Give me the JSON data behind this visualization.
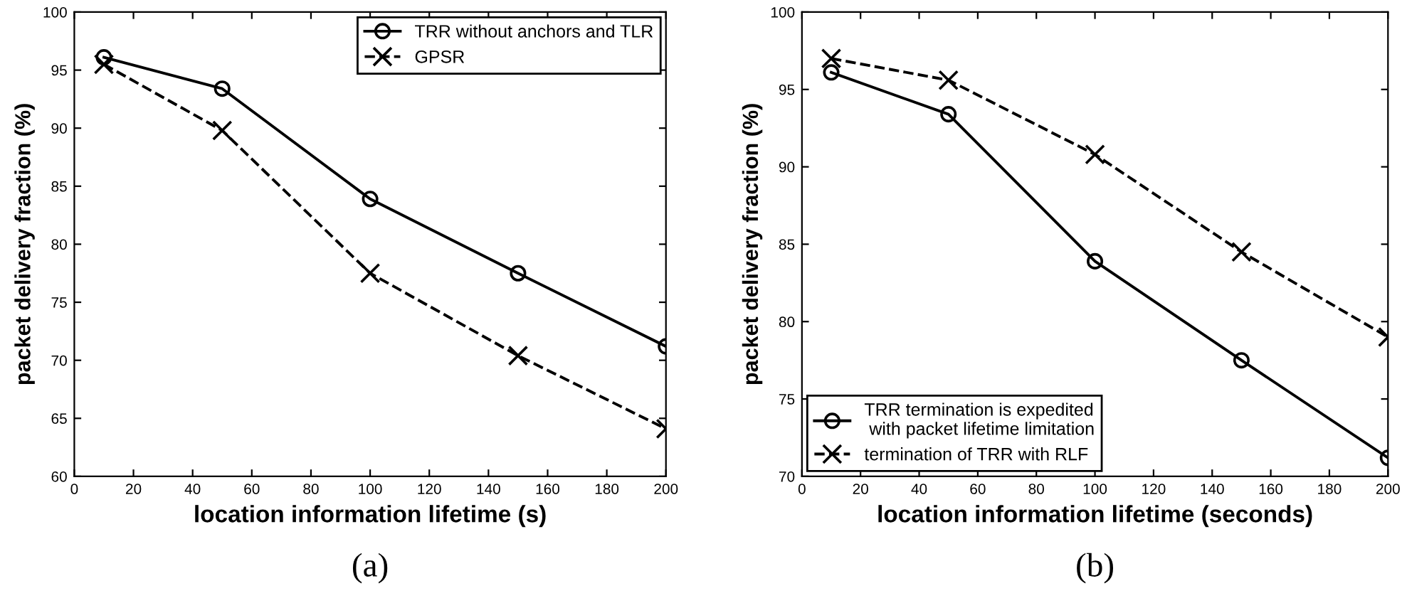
{
  "chart_data": [
    {
      "type": "line",
      "xlabel": "location information lifetime (s)",
      "ylabel": "packet delivery fraction (%)",
      "annotations": [
        "(a)"
      ],
      "x": [
        10,
        50,
        100,
        150,
        200
      ],
      "xlim": [
        0,
        200
      ],
      "ylim": [
        60,
        100
      ],
      "xticks": [
        0,
        20,
        40,
        60,
        80,
        100,
        120,
        140,
        160,
        180,
        200
      ],
      "yticks": [
        60,
        65,
        70,
        75,
        80,
        85,
        90,
        95,
        100
      ],
      "grid": false,
      "legend": "top right",
      "series": [
        {
          "name": "TRR without anchors and TLR",
          "color": "#000000",
          "marker": "circle",
          "line_style": "solid",
          "values": [
            96.1,
            93.4,
            83.9,
            77.5,
            71.2
          ]
        },
        {
          "name": "GPSR",
          "color": "#000000",
          "marker": "cross",
          "line_style": "dashed",
          "values": [
            95.5,
            89.8,
            77.5,
            70.4,
            64.1
          ]
        }
      ]
    },
    {
      "type": "line",
      "xlabel": "location information lifetime (seconds)",
      "ylabel": "packet delivery fraction (%)",
      "annotations": [
        "(b)"
      ],
      "x": [
        10,
        50,
        100,
        150,
        200
      ],
      "xlim": [
        0,
        200
      ],
      "ylim": [
        70,
        100
      ],
      "xticks": [
        0,
        20,
        40,
        60,
        80,
        100,
        120,
        140,
        160,
        180,
        200
      ],
      "yticks": [
        70,
        75,
        80,
        85,
        90,
        95,
        100
      ],
      "grid": false,
      "legend": "bottom left",
      "series": [
        {
          "name": "TRR termination is expedited\n with packet lifetime limitation",
          "color": "#000000",
          "marker": "circle",
          "line_style": "solid",
          "values": [
            96.1,
            93.4,
            83.9,
            77.5,
            71.2
          ]
        },
        {
          "name": "termination of TRR with RLF",
          "color": "#000000",
          "marker": "cross",
          "line_style": "dashed",
          "values": [
            97.0,
            95.6,
            90.8,
            84.5,
            79.0
          ]
        }
      ]
    }
  ]
}
